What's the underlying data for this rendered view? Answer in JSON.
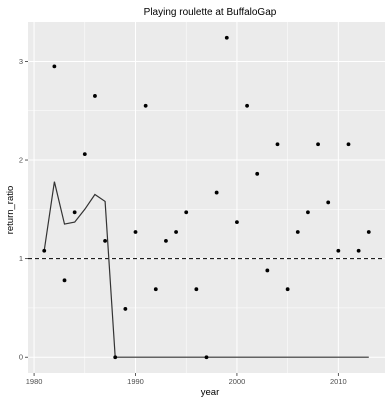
{
  "chart_data": {
    "type": "scatter",
    "title": "Playing roulette at BuffaloGap",
    "xlabel": "year",
    "ylabel": "return_ratio",
    "xlim": [
      1979.4,
      2014.6
    ],
    "ylim": [
      -0.16,
      3.4
    ],
    "x_ticks": [
      1980,
      1990,
      2000,
      2010
    ],
    "y_ticks": [
      0,
      1,
      2,
      3
    ],
    "x_tick_labels": [
      "1980",
      "1990",
      "2000",
      "2010"
    ],
    "y_tick_labels": [
      "0",
      "1",
      "2",
      "3"
    ],
    "grid": true,
    "panel_background": "#ebebeb",
    "grid_color": "#ffffff",
    "reference_line": {
      "y": 1,
      "style": "dashed",
      "color": "#000000"
    },
    "points": {
      "x": [
        1981,
        1982,
        1983,
        1984,
        1985,
        1986,
        1987,
        1988,
        1989,
        1990,
        1991,
        1992,
        1993,
        1994,
        1995,
        1996,
        1997,
        1998,
        1999,
        2000,
        2001,
        2002,
        2003,
        2004,
        2005,
        2006,
        2007,
        2008,
        2009,
        2010,
        2011,
        2012,
        2013
      ],
      "y": [
        1.08,
        2.95,
        0.78,
        1.47,
        2.06,
        2.65,
        1.18,
        0.0,
        0.49,
        1.27,
        2.55,
        0.69,
        1.18,
        1.27,
        1.47,
        0.69,
        0.0,
        1.67,
        3.24,
        1.37,
        2.55,
        1.86,
        0.88,
        2.16,
        0.69,
        1.27,
        1.47,
        2.16,
        1.57,
        1.08,
        2.16,
        1.08,
        1.27
      ],
      "color": "#000000"
    },
    "line": {
      "x": [
        1981,
        1982,
        1983,
        1984,
        1985,
        1986,
        1987,
        1988,
        1989,
        1990,
        1991,
        1992,
        1993,
        1994,
        1995,
        1996,
        1997,
        1998,
        1999,
        2000,
        2001,
        2002,
        2003,
        2004,
        2005,
        2006,
        2007,
        2008,
        2009,
        2010,
        2011,
        2012,
        2013
      ],
      "y": [
        1.08,
        1.78,
        1.35,
        1.37,
        1.5,
        1.65,
        1.58,
        0.0,
        0.0,
        0.0,
        0.0,
        0.0,
        0.0,
        0.0,
        0.0,
        0.0,
        0.0,
        0.0,
        0.0,
        0.0,
        0.0,
        0.0,
        0.0,
        0.0,
        0.0,
        0.0,
        0.0,
        0.0,
        0.0,
        0.0,
        0.0,
        0.0,
        0.0
      ],
      "color": "#333333"
    }
  }
}
